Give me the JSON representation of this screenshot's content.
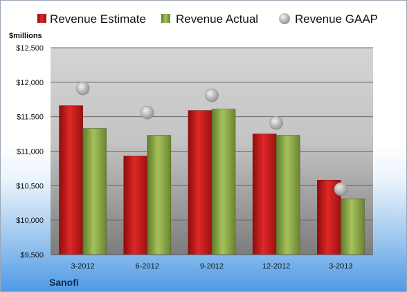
{
  "chart_data": {
    "type": "bar",
    "categories": [
      "3-2012",
      "6-2012",
      "9-2012",
      "12-2012",
      "3-2013"
    ],
    "series": [
      {
        "name": "Revenue Estimate",
        "values": [
          11660,
          10930,
          11590,
          11250,
          10580
        ],
        "color": "#c01a1a"
      },
      {
        "name": "Revenue Actual",
        "values": [
          11330,
          11230,
          11610,
          11230,
          10310
        ],
        "color": "#8fab4a"
      }
    ],
    "scatter_series": {
      "name": "Revenue GAAP",
      "values": [
        11910,
        11560,
        11810,
        11410,
        10450
      ],
      "color": "#b8b8b8"
    },
    "ylabel": "$millions",
    "yticks": [
      "$9,500",
      "$10,000",
      "$10,500",
      "$11,000",
      "$11,500",
      "$12,000",
      "$12,500"
    ],
    "ylim": [
      9500,
      12500
    ],
    "grid": true,
    "legend_position": "top",
    "company": "Sanofi"
  }
}
